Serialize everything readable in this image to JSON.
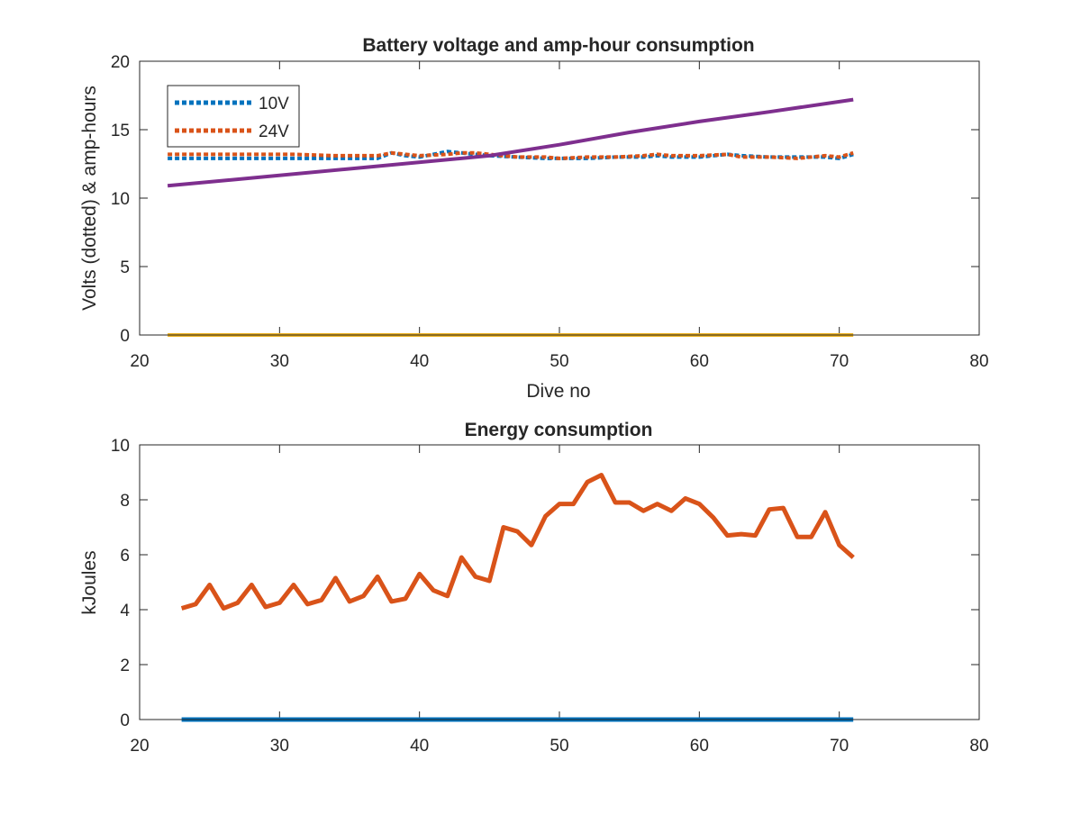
{
  "chart_data": [
    {
      "type": "line",
      "title": "Battery voltage and amp-hour consumption",
      "xlabel": "Dive no",
      "ylabel": "Volts (dotted) & amp-hours",
      "xlim": [
        20,
        80
      ],
      "ylim": [
        0,
        20
      ],
      "xticks": [
        "20",
        "30",
        "40",
        "50",
        "60",
        "70",
        "80"
      ],
      "yticks": [
        "0",
        "5",
        "10",
        "15",
        "20"
      ],
      "grid": false,
      "legend_position": "top-left",
      "series": [
        {
          "name": "10V",
          "style": "dotted",
          "color": "#0072BD",
          "x": [
            22,
            25,
            28,
            31,
            34,
            37,
            38,
            39,
            40,
            42,
            43,
            44,
            45,
            47,
            49,
            50,
            52,
            54,
            56,
            57,
            58,
            60,
            62,
            63,
            65,
            67,
            69,
            70,
            71
          ],
          "y": [
            12.9,
            12.9,
            12.9,
            12.9,
            12.9,
            12.9,
            13.3,
            13.1,
            13.0,
            13.4,
            13.3,
            13.2,
            13.1,
            13.0,
            12.9,
            12.9,
            12.9,
            13.0,
            13.0,
            13.1,
            13.0,
            13.0,
            13.2,
            13.1,
            13.0,
            13.0,
            13.0,
            12.9,
            13.2
          ]
        },
        {
          "name": "24V",
          "style": "dotted",
          "color": "#D95319",
          "x": [
            22,
            25,
            28,
            31,
            34,
            37,
            38,
            39,
            40,
            42,
            43,
            44,
            45,
            47,
            49,
            50,
            52,
            54,
            56,
            57,
            58,
            60,
            62,
            63,
            65,
            67,
            69,
            70,
            71
          ],
          "y": [
            13.2,
            13.2,
            13.2,
            13.2,
            13.1,
            13.1,
            13.3,
            13.2,
            13.1,
            13.2,
            13.3,
            13.3,
            13.2,
            13.0,
            13.0,
            12.9,
            13.0,
            13.0,
            13.1,
            13.2,
            13.1,
            13.1,
            13.2,
            13.0,
            13.0,
            12.9,
            13.1,
            13.0,
            13.3
          ]
        },
        {
          "style": "solid",
          "color": "#EDB120",
          "x": [
            22,
            71
          ],
          "y": [
            0,
            0
          ]
        },
        {
          "style": "solid",
          "color": "#7E2F8E",
          "x": [
            22,
            45,
            50,
            55,
            60,
            65,
            71
          ],
          "y": [
            10.9,
            13.1,
            13.9,
            14.8,
            15.6,
            16.3,
            17.2
          ]
        }
      ]
    },
    {
      "type": "line",
      "title": "Energy consumption",
      "xlabel": "",
      "ylabel": "kJoules",
      "xlim": [
        20,
        80
      ],
      "ylim": [
        0,
        10
      ],
      "xticks": [
        "20",
        "30",
        "40",
        "50",
        "60",
        "70",
        "80"
      ],
      "yticks": [
        "0",
        "2",
        "4",
        "6",
        "8",
        "10"
      ],
      "grid": false,
      "series": [
        {
          "style": "solid",
          "color": "#0072BD",
          "x": [
            23,
            71
          ],
          "y": [
            0,
            0
          ]
        },
        {
          "style": "solid",
          "color": "#D95319",
          "x": [
            23,
            24,
            25,
            26,
            27,
            28,
            29,
            30,
            31,
            32,
            33,
            34,
            35,
            36,
            37,
            38,
            39,
            40,
            41,
            42,
            43,
            44,
            45,
            46,
            47,
            48,
            49,
            50,
            51,
            52,
            53,
            54,
            55,
            56,
            57,
            58,
            59,
            60,
            61,
            62,
            63,
            64,
            65,
            66,
            67,
            68,
            69,
            70,
            71
          ],
          "y": [
            4.05,
            4.2,
            4.9,
            4.05,
            4.25,
            4.9,
            4.1,
            4.25,
            4.9,
            4.2,
            4.35,
            5.15,
            4.3,
            4.5,
            5.2,
            4.3,
            4.4,
            5.3,
            4.7,
            4.5,
            5.9,
            5.2,
            5.05,
            7.0,
            6.85,
            6.35,
            7.4,
            7.85,
            7.85,
            8.65,
            8.9,
            7.9,
            7.9,
            7.6,
            7.85,
            7.6,
            8.05,
            7.85,
            7.35,
            6.7,
            6.75,
            6.7,
            7.65,
            7.7,
            6.65,
            6.65,
            7.55,
            6.35,
            5.9
          ]
        }
      ]
    }
  ]
}
